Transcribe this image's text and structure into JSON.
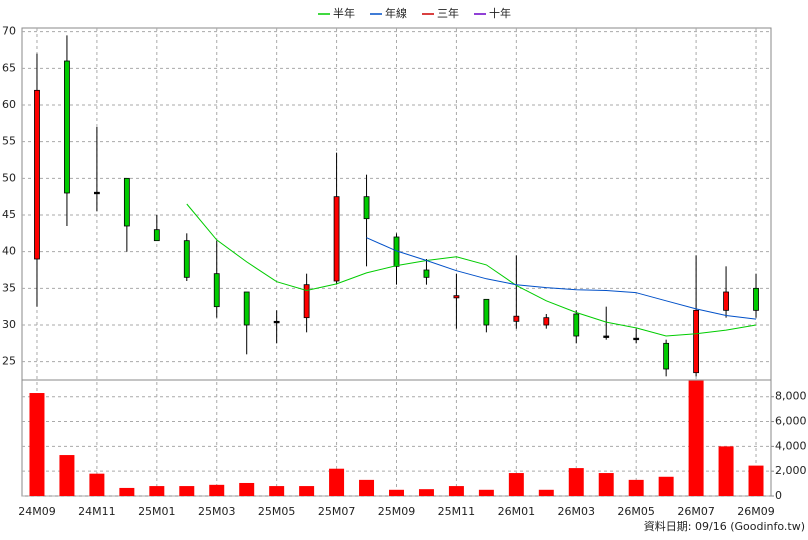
{
  "chart_data": {
    "type": "candlestick",
    "categories": [
      "24M09",
      null,
      "24M11",
      null,
      "25M01",
      null,
      "25M03",
      null,
      "25M05",
      null,
      "25M07",
      null,
      "25M09",
      null,
      "25M11",
      null,
      "26M01",
      null,
      "26M03",
      null,
      "26M05",
      null,
      "26M07",
      null,
      "26M09"
    ],
    "ohlc": {
      "open": [
        39,
        66,
        48.1,
        50,
        43,
        41.5,
        37,
        34.5,
        30.5,
        31,
        36,
        47.5,
        42,
        37.5,
        33.7,
        33.5,
        30.5,
        30,
        31.5,
        28.5,
        28.2,
        27.5,
        23.5,
        32,
        35
      ],
      "high": [
        67,
        69.5,
        57,
        50,
        45,
        42.5,
        41.5,
        34.5,
        32,
        37,
        53.5,
        50.5,
        42.5,
        39,
        37,
        33.5,
        39.5,
        31.5,
        32,
        32.5,
        29.5,
        28,
        39.5,
        38,
        37
      ],
      "low": [
        32.5,
        43.5,
        45.5,
        40,
        41.5,
        36,
        31,
        26,
        27.5,
        29,
        35.5,
        38,
        35.5,
        35.5,
        29.5,
        29,
        29.5,
        29.5,
        27.5,
        28,
        27.5,
        23,
        23,
        31,
        31
      ],
      "close": [
        62,
        48,
        48.1,
        43.5,
        41.5,
        36.5,
        32.5,
        30,
        30.5,
        35.5,
        47.5,
        44.5,
        38,
        36.5,
        34,
        30,
        31.2,
        31,
        28.5,
        28.5,
        28.2,
        24,
        32,
        34.5,
        32
      ]
    },
    "up_color": "#ff0000",
    "down_color": "#00cc00",
    "series": [
      {
        "name": "半年",
        "color": "#00cc00",
        "values": [
          null,
          null,
          null,
          null,
          null,
          46.5,
          41.6,
          38.6,
          35.9,
          34.7,
          35.6,
          37.1,
          38.1,
          38.8,
          39.3,
          38.2,
          35.4,
          33.3,
          31.7,
          30.4,
          29.6,
          28.5,
          28.8,
          29.3,
          30.0
        ]
      },
      {
        "name": "年線",
        "color": "#0050c8",
        "values": [
          null,
          null,
          null,
          null,
          null,
          null,
          null,
          null,
          null,
          null,
          null,
          41.9,
          40.1,
          38.8,
          37.4,
          36.3,
          35.5,
          35.1,
          34.8,
          34.7,
          34.4,
          33.3,
          32.2,
          31.3,
          30.8
        ]
      },
      {
        "name": "三年",
        "color": "#cc0000",
        "values": [
          null,
          null,
          null,
          null,
          null,
          null,
          null,
          null,
          null,
          null,
          null,
          null,
          null,
          null,
          null,
          null,
          null,
          null,
          null,
          null,
          null,
          null,
          null,
          null,
          null
        ]
      },
      {
        "name": "十年",
        "color": "#6a00c8",
        "values": [
          null,
          null,
          null,
          null,
          null,
          null,
          null,
          null,
          null,
          null,
          null,
          null,
          null,
          null,
          null,
          null,
          null,
          null,
          null,
          null,
          null,
          null,
          null,
          null,
          null
        ]
      }
    ],
    "ylim": [
      22.5,
      70.5
    ],
    "yticks": [
      25,
      30,
      35,
      40,
      45,
      50,
      55,
      60,
      65,
      70
    ],
    "volume": {
      "color": "#ff0000",
      "values": [
        8300,
        3300,
        1800,
        650,
        800,
        800,
        900,
        1050,
        800,
        800,
        2200,
        1300,
        500,
        550,
        800,
        500,
        1850,
        500,
        2250,
        1850,
        1300,
        1550,
        9300,
        4000,
        2450
      ],
      "ylim": [
        0,
        9350
      ],
      "yticks": [
        0,
        {
          "value": 2000,
          "label": "2,000"
        },
        {
          "value": 4000,
          "label": "4,000"
        },
        {
          "value": 6000,
          "label": "6,000"
        },
        {
          "value": 8000,
          "label": "8,000"
        }
      ]
    },
    "grid": true,
    "legend": "top",
    "footnote": "資料日期: 09/16  (Goodinfo.tw)"
  }
}
